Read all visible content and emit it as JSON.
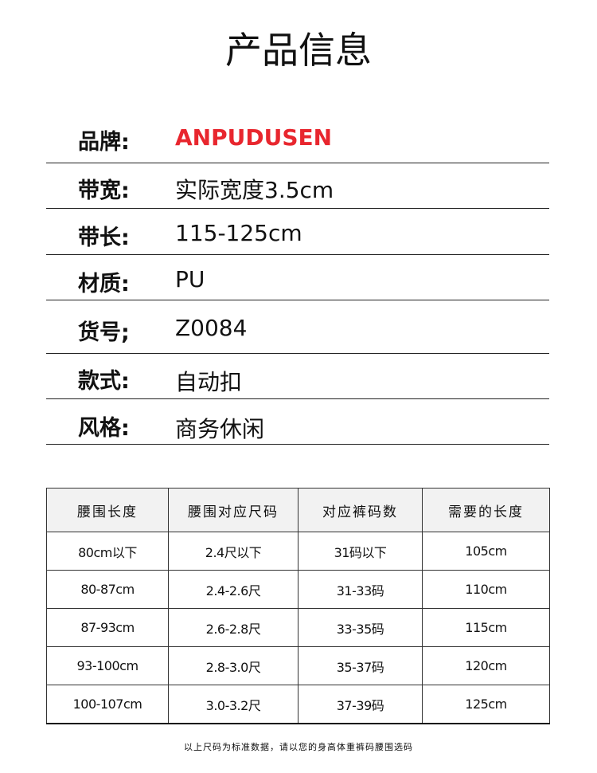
{
  "title": "产品信息",
  "accent_color": "#e8262e",
  "info": [
    {
      "label": "品牌:",
      "value": "ANPUDUSEN"
    },
    {
      "label": "带宽:",
      "value": "实际宽度3.5cm"
    },
    {
      "label": "带长:",
      "value": "115-125cm"
    },
    {
      "label": "材质:",
      "value": "PU"
    },
    {
      "label": "货号;",
      "value": "Z0084"
    },
    {
      "label": "款式:",
      "value": "自动扣"
    },
    {
      "label": "风格:",
      "value": "商务休闲"
    }
  ],
  "size_table": {
    "headers": [
      "腰围长度",
      "腰围对应尺码",
      "对应裤码数",
      "需要的长度"
    ],
    "rows": [
      [
        "80cm以下",
        "2.4尺以下",
        "31码以下",
        "105cm"
      ],
      [
        "80-87cm",
        "2.4-2.6尺",
        "31-33码",
        "110cm"
      ],
      [
        "87-93cm",
        "2.6-2.8尺",
        "33-35码",
        "115cm"
      ],
      [
        "93-100cm",
        "2.8-3.0尺",
        "35-37码",
        "120cm"
      ],
      [
        "100-107cm",
        "3.0-3.2尺",
        "37-39码",
        "125cm"
      ]
    ]
  },
  "note": "以上尺码为标准数据，请以您的身高体重裤码腰围选码"
}
